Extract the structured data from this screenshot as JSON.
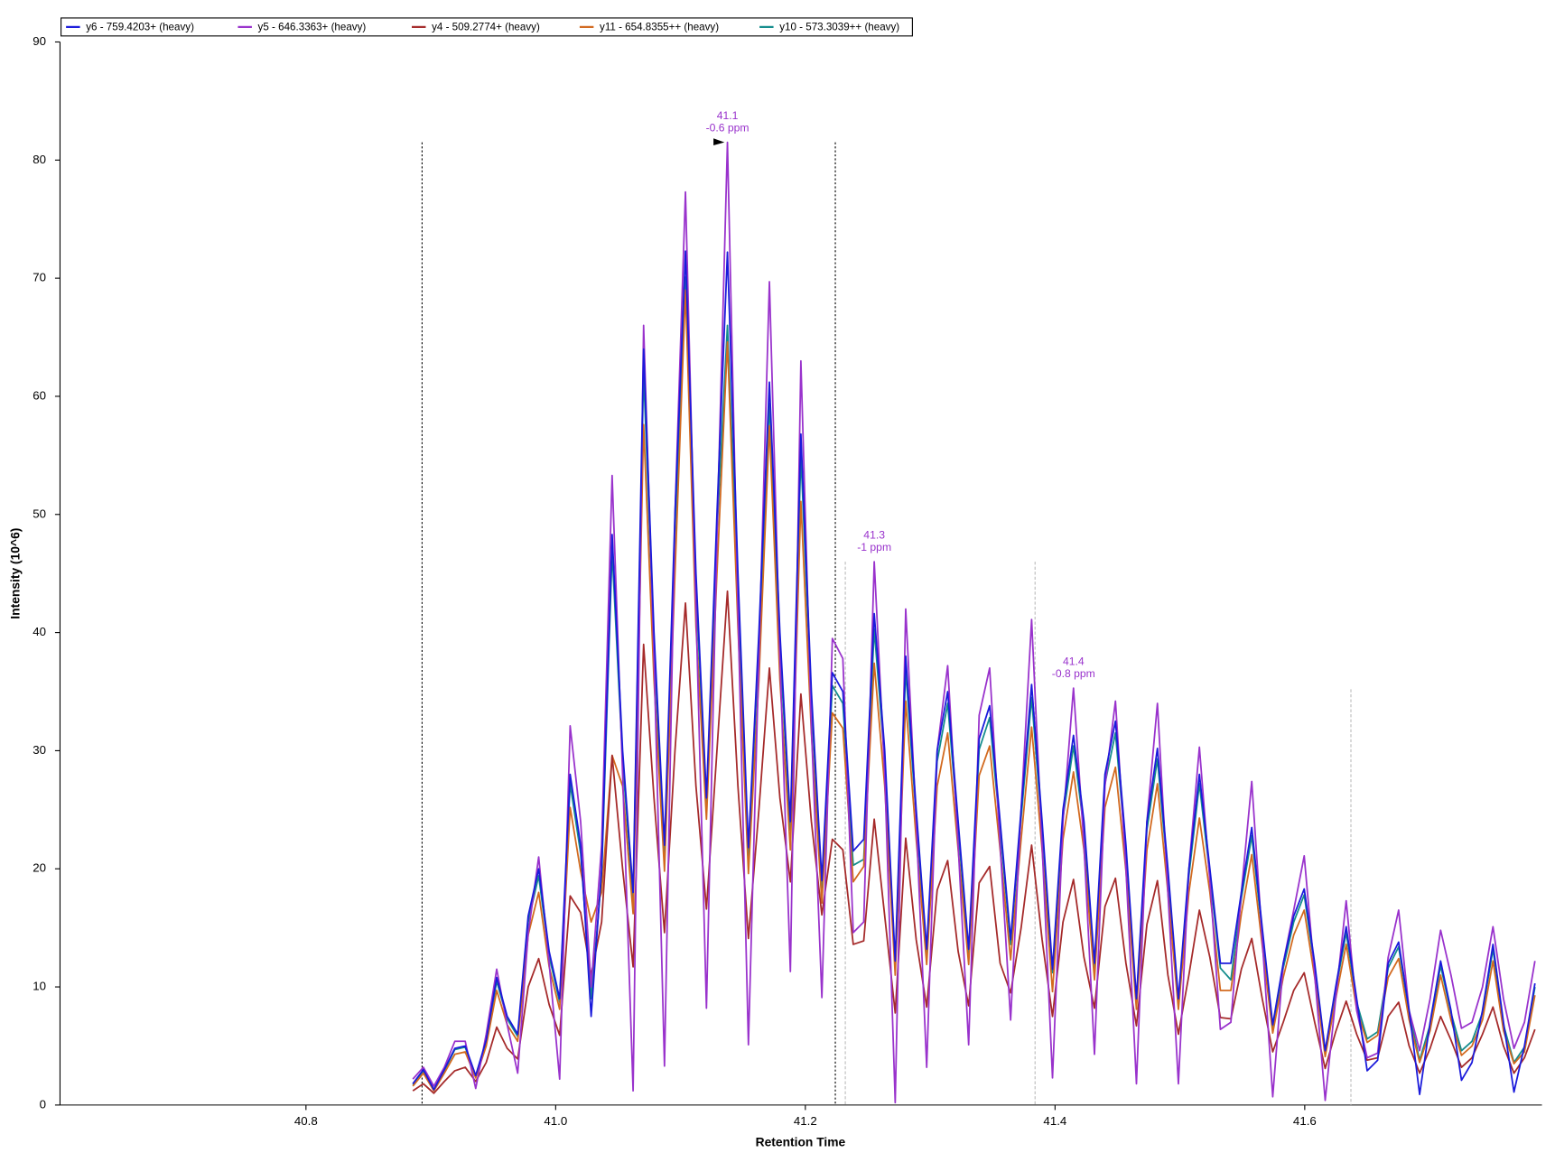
{
  "chart_data": {
    "type": "line",
    "xlabel": "Retention Time",
    "ylabel": "Intensity (10^6)",
    "xlim": [
      40.603,
      41.79
    ],
    "ylim": [
      0,
      90
    ],
    "xticks": [
      40.8,
      {
        "value": 41,
        "label": "41.0"
      },
      41.2,
      41.4,
      41.6
    ],
    "yticks": [
      0,
      10,
      20,
      30,
      40,
      50,
      60,
      70,
      80,
      90
    ],
    "legend": "top-left",
    "x": [
      40.8856,
      40.894,
      40.9024,
      40.9108,
      40.9192,
      40.9276,
      40.936,
      40.9444,
      40.9528,
      40.9612,
      40.9696,
      40.978,
      40.9864,
      40.9948,
      41.0032,
      41.0116,
      41.02,
      41.0284,
      41.0368,
      41.0452,
      41.0536,
      41.062,
      41.0704,
      41.0788,
      41.0872,
      41.0956,
      41.104,
      41.1124,
      41.1208,
      41.1292,
      41.1376,
      41.146,
      41.1544,
      41.1628,
      41.1712,
      41.1796,
      41.188,
      41.1964,
      41.2048,
      41.2132,
      41.2216,
      41.23,
      41.2384,
      41.2468,
      41.2552,
      41.2636,
      41.272,
      41.2804,
      41.2888,
      41.2972,
      41.3056,
      41.314,
      41.3224,
      41.3308,
      41.3392,
      41.3476,
      41.356,
      41.3644,
      41.3728,
      41.3812,
      41.3896,
      41.398,
      41.4064,
      41.4148,
      41.4232,
      41.4316,
      41.44,
      41.4484,
      41.4568,
      41.4652,
      41.4736,
      41.482,
      41.4904,
      41.4988,
      41.5072,
      41.5156,
      41.524,
      41.5324,
      41.5408,
      41.5492,
      41.5576,
      41.566,
      41.5744,
      41.5828,
      41.5912,
      41.5996,
      41.608,
      41.6164,
      41.6248,
      41.6332,
      41.6416,
      41.65,
      41.6584,
      41.6668,
      41.6752,
      41.6836,
      41.692,
      41.7004,
      41.7088,
      41.7172,
      41.7256,
      41.734,
      41.7424,
      41.7508,
      41.7592,
      41.7676,
      41.776,
      41.7844
    ],
    "series": [
      {
        "name": "y6 - 759.4203+ (heavy)",
        "color": "#1a1adb",
        "values": [
          1.8,
          3.0,
          1.3,
          3.0,
          4.8,
          5.0,
          2.5,
          5.5,
          10.8,
          7.5,
          6.0,
          16.0,
          20.0,
          13.0,
          9.0,
          28.0,
          22.0,
          7.5,
          20.0,
          48.3,
          30.0,
          18.0,
          64.0,
          40.0,
          22.0,
          50.0,
          72.3,
          45.0,
          26.0,
          50.0,
          72.2,
          45.0,
          21.8,
          40.0,
          61.2,
          40.0,
          24.0,
          56.8,
          35.0,
          19.0,
          36.6,
          35.0,
          21.5,
          22.5,
          41.6,
          30.0,
          12.2,
          38.0,
          25.0,
          13.2,
          30.0,
          35.0,
          24.0,
          13.2,
          31.0,
          33.8,
          24.0,
          14.0,
          25.0,
          35.6,
          24.0,
          11.5,
          25.0,
          31.3,
          24.0,
          12.0,
          28.0,
          32.5,
          22.0,
          9.0,
          24.0,
          30.2,
          20.0,
          9.0,
          20.0,
          28.0,
          20.0,
          12.0,
          12.0,
          18.0,
          23.5,
          15.0,
          6.8,
          12.0,
          16.0,
          18.3,
          12.0,
          4.6,
          10.0,
          15.1,
          9.0,
          2.9,
          3.8,
          12.0,
          13.8,
          8.0,
          0.9,
          7.0,
          12.2,
          8.0,
          2.1,
          3.6,
          8.0,
          13.6,
          7.0,
          1.1,
          5.0,
          10.3
        ]
      },
      {
        "name": "y5 - 646.3363+ (heavy)",
        "color": "#9932cc",
        "values": [
          2.2,
          3.2,
          1.6,
          3.2,
          5.4,
          5.4,
          1.4,
          6.0,
          11.5,
          6.8,
          2.7,
          14.5,
          21.0,
          12.0,
          2.2,
          32.1,
          24.0,
          10.0,
          22.0,
          53.3,
          28.0,
          1.2,
          66.0,
          38.0,
          3.3,
          50.0,
          77.3,
          42.0,
          8.2,
          48.0,
          81.5,
          42.0,
          5.1,
          38.0,
          69.7,
          38.0,
          11.3,
          63.0,
          32.0,
          9.1,
          39.5,
          37.8,
          14.6,
          15.5,
          46.0,
          28.0,
          0.2,
          42.0,
          24.0,
          3.2,
          30.0,
          37.2,
          22.0,
          5.1,
          33.0,
          37.0,
          22.0,
          7.2,
          25.0,
          41.1,
          22.0,
          2.3,
          24.0,
          35.3,
          22.0,
          4.3,
          27.0,
          34.2,
          20.0,
          1.8,
          24.0,
          34.0,
          18.0,
          1.8,
          20.0,
          30.3,
          19.0,
          6.4,
          7.0,
          18.0,
          27.4,
          14.0,
          0.7,
          12.0,
          16.5,
          21.1,
          11.0,
          0.4,
          9.0,
          17.3,
          8.0,
          4.0,
          4.4,
          12.5,
          16.5,
          8.0,
          4.6,
          9.0,
          14.8,
          11.0,
          6.5,
          7.0,
          10.0,
          15.1,
          9.0,
          4.8,
          7.0,
          12.2
        ]
      },
      {
        "name": "y4 - 509.2774+ (heavy)",
        "color": "#a52a2a",
        "values": [
          1.2,
          1.8,
          1.0,
          2.0,
          2.9,
          3.2,
          2.0,
          3.6,
          6.6,
          4.8,
          3.9,
          10.0,
          12.4,
          8.5,
          5.9,
          17.7,
          16.3,
          11.0,
          15.5,
          29.6,
          20.0,
          11.7,
          39.0,
          26.0,
          14.6,
          30.0,
          42.5,
          27.0,
          16.6,
          30.0,
          43.5,
          27.0,
          14.1,
          25.0,
          37.0,
          26.0,
          18.9,
          34.8,
          24.0,
          16.1,
          22.5,
          21.6,
          13.6,
          13.9,
          24.2,
          16.0,
          7.8,
          22.6,
          14.0,
          8.3,
          18.2,
          20.7,
          13.0,
          8.4,
          18.8,
          20.2,
          12.0,
          9.5,
          15.0,
          22.0,
          14.0,
          7.5,
          15.5,
          19.1,
          12.5,
          8.2,
          16.8,
          19.2,
          12.0,
          6.7,
          15.3,
          19.0,
          11.0,
          6.0,
          11.0,
          16.5,
          12.5,
          7.4,
          7.3,
          11.5,
          14.1,
          9.0,
          4.5,
          7.0,
          9.7,
          11.2,
          7.0,
          3.1,
          6.2,
          8.8,
          6.0,
          3.8,
          4.0,
          7.5,
          8.7,
          5.0,
          2.7,
          4.8,
          7.5,
          5.5,
          3.2,
          4.0,
          6.0,
          8.3,
          5.0,
          2.7,
          4.0,
          6.4
        ]
      },
      {
        "name": "y11 - 654.8355++ (heavy)",
        "color": "#d2691e",
        "values": [
          1.6,
          2.7,
          1.2,
          2.7,
          4.3,
          4.5,
          2.3,
          5.0,
          9.7,
          6.8,
          5.4,
          14.4,
          18.0,
          11.7,
          8.1,
          25.2,
          19.8,
          15.5,
          18.0,
          29.6,
          27.0,
          16.2,
          57.6,
          36.0,
          19.8,
          45.0,
          69.0,
          40.5,
          24.2,
          45.0,
          64.6,
          40.5,
          19.6,
          36.0,
          57.5,
          36.0,
          21.6,
          51.1,
          31.5,
          17.1,
          33.2,
          31.9,
          18.9,
          20.2,
          37.4,
          27.0,
          11.0,
          34.2,
          22.5,
          11.9,
          27.0,
          31.5,
          21.6,
          11.9,
          27.9,
          30.4,
          21.6,
          12.3,
          22.5,
          32.0,
          21.6,
          9.6,
          22.5,
          28.2,
          21.6,
          10.6,
          25.2,
          28.6,
          19.8,
          8.1,
          21.6,
          27.2,
          18.0,
          8.1,
          18.0,
          24.3,
          18.0,
          9.7,
          9.7,
          16.2,
          21.2,
          13.5,
          6.1,
          10.8,
          14.4,
          16.5,
          10.8,
          4.1,
          9.0,
          13.6,
          8.1,
          5.3,
          5.9,
          10.8,
          12.4,
          7.2,
          3.6,
          6.3,
          11.0,
          7.2,
          4.2,
          5.0,
          7.2,
          12.2,
          6.3,
          3.5,
          4.5,
          9.3
        ]
      },
      {
        "name": "y10 - 573.3039++ (heavy)",
        "color": "#138c8c",
        "values": [
          1.7,
          2.9,
          1.3,
          2.9,
          4.7,
          4.9,
          2.4,
          5.3,
          10.5,
          7.3,
          5.8,
          15.5,
          19.4,
          12.6,
          8.7,
          27.2,
          21.3,
          9.0,
          19.4,
          46.9,
          29.1,
          17.5,
          62.1,
          38.8,
          21.3,
          48.5,
          70.1,
          43.7,
          25.2,
          48.5,
          66.0,
          43.7,
          21.1,
          38.8,
          59.4,
          38.8,
          23.3,
          55.1,
          34.0,
          18.4,
          35.5,
          34.0,
          20.3,
          20.8,
          40.3,
          29.1,
          11.8,
          36.9,
          24.3,
          12.8,
          29.1,
          34.0,
          23.3,
          12.8,
          30.1,
          32.8,
          23.3,
          13.6,
          24.3,
          34.5,
          23.3,
          11.2,
          24.3,
          30.4,
          23.3,
          11.6,
          27.2,
          31.5,
          21.3,
          8.7,
          23.3,
          29.3,
          19.4,
          8.7,
          19.4,
          27.2,
          19.4,
          11.6,
          10.6,
          17.5,
          22.8,
          14.6,
          6.6,
          11.6,
          15.5,
          17.8,
          11.6,
          4.5,
          9.7,
          14.6,
          8.7,
          5.6,
          6.2,
          11.6,
          13.4,
          7.8,
          3.8,
          6.8,
          11.8,
          7.8,
          4.6,
          5.4,
          7.8,
          13.2,
          6.8,
          3.6,
          4.9,
          10.0
        ]
      }
    ],
    "boundaries": [
      {
        "x": 40.893,
        "y": 81.5
      },
      {
        "x": 41.224,
        "y": 81.5
      }
    ],
    "peak_markers": [
      {
        "x": 41.232,
        "y": 46
      },
      {
        "x": 41.384,
        "y": 46
      },
      {
        "x": 41.637,
        "y": 35.2
      }
    ],
    "annotations": [
      {
        "text": [
          "41.1",
          "-0.6 ppm"
        ],
        "x": 41.1376,
        "y": 81.5
      },
      {
        "text": [
          "41.3",
          "-1 ppm"
        ],
        "x": 41.2552,
        "y": 46.0
      },
      {
        "text": [
          "41.4",
          "-0.8 ppm"
        ],
        "x": 41.4148,
        "y": 35.3
      }
    ]
  }
}
